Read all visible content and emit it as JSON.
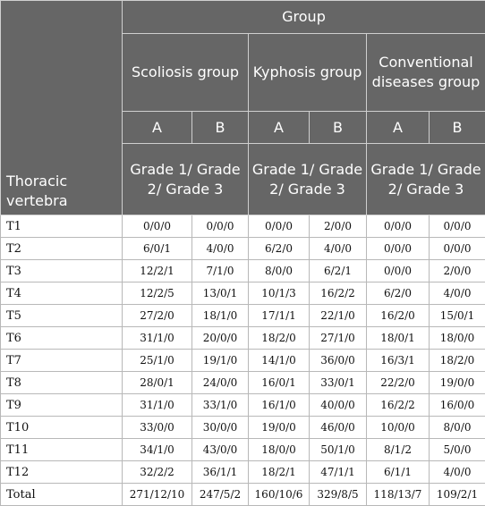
{
  "header": {
    "corner_label": "Thoracic vertebra",
    "group_label": "Group",
    "groups": [
      "Scoliosis group",
      "Kyphosis group",
      "Conventional diseases group"
    ],
    "sub": [
      "A",
      "B",
      "A",
      "B",
      "A",
      "B"
    ],
    "grade_label": "Grade 1/ Grade 2/ Grade 3"
  },
  "rows": [
    {
      "label": "T1",
      "cells": [
        "0/0/0",
        "0/0/0",
        "0/0/0",
        "2/0/0",
        "0/0/0",
        "0/0/0"
      ]
    },
    {
      "label": "T2",
      "cells": [
        "6/0/1",
        "4/0/0",
        "6/2/0",
        "4/0/0",
        "0/0/0",
        "0/0/0"
      ]
    },
    {
      "label": "T3",
      "cells": [
        "12/2/1",
        "7/1/0",
        "8/0/0",
        "6/2/1",
        "0/0/0",
        "2/0/0"
      ]
    },
    {
      "label": "T4",
      "cells": [
        "12/2/5",
        "13/0/1",
        "10/1/3",
        "16/2/2",
        "6/2/0",
        "4/0/0"
      ]
    },
    {
      "label": "T5",
      "cells": [
        "27/2/0",
        "18/1/0",
        "17/1/1",
        "22/1/0",
        "16/2/0",
        "15/0/1"
      ]
    },
    {
      "label": "T6",
      "cells": [
        "31/1/0",
        "20/0/0",
        "18/2/0",
        "27/1/0",
        "18/0/1",
        "18/0/0"
      ]
    },
    {
      "label": "T7",
      "cells": [
        "25/1/0",
        "19/1/0",
        "14/1/0",
        "36/0/0",
        "16/3/1",
        "18/2/0"
      ]
    },
    {
      "label": "T8",
      "cells": [
        "28/0/1",
        "24/0/0",
        "16/0/1",
        "33/0/1",
        "22/2/0",
        "19/0/0"
      ]
    },
    {
      "label": "T9",
      "cells": [
        "31/1/0",
        "33/1/0",
        "16/1/0",
        "40/0/0",
        "16/2/2",
        "16/0/0"
      ]
    },
    {
      "label": "T10",
      "cells": [
        "33/0/0",
        "30/0/0",
        "19/0/0",
        "46/0/0",
        "10/0/0",
        "8/0/0"
      ]
    },
    {
      "label": "T11",
      "cells": [
        "34/1/0",
        "43/0/0",
        "18/0/0",
        "50/1/0",
        "8/1/2",
        "5/0/0"
      ]
    },
    {
      "label": "T12",
      "cells": [
        "32/2/2",
        "36/1/1",
        "18/2/1",
        "47/1/1",
        "6/1/1",
        "4/0/0"
      ]
    },
    {
      "label": "Total",
      "cells": [
        "271/12/10",
        "247/5/2",
        "160/10/6",
        "329/8/5",
        "118/13/7",
        "109/2/1"
      ]
    }
  ]
}
